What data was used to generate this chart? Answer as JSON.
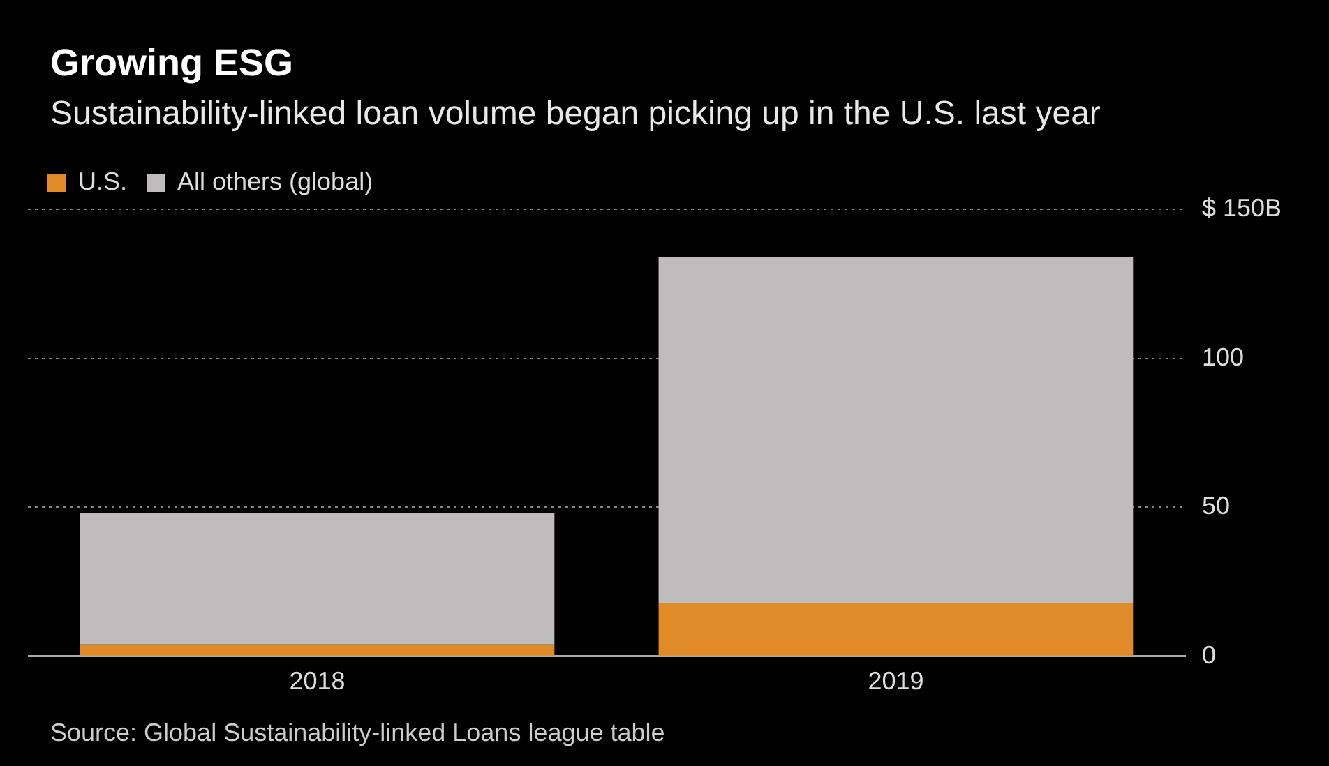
{
  "chart_data": {
    "type": "bar",
    "title": "Growing ESG",
    "subtitle": "Sustainability-linked loan volume began picking up in the U.S. last year",
    "categories": [
      "2018",
      "2019"
    ],
    "series": [
      {
        "name": "U.S.",
        "color": "#e08b27",
        "values": [
          4,
          18
        ]
      },
      {
        "name": "All others (global)",
        "color": "#bebcbc",
        "values": [
          44,
          116
        ]
      }
    ],
    "stacked": true,
    "ylim": [
      0,
      150
    ],
    "yticks": [
      0,
      50,
      100,
      {
        "value": 150,
        "label": "$ 150B"
      }
    ],
    "grid": "y",
    "legend": "top left",
    "annotations": [
      "Source: Global Sustainability-linked Loans league table"
    ]
  }
}
